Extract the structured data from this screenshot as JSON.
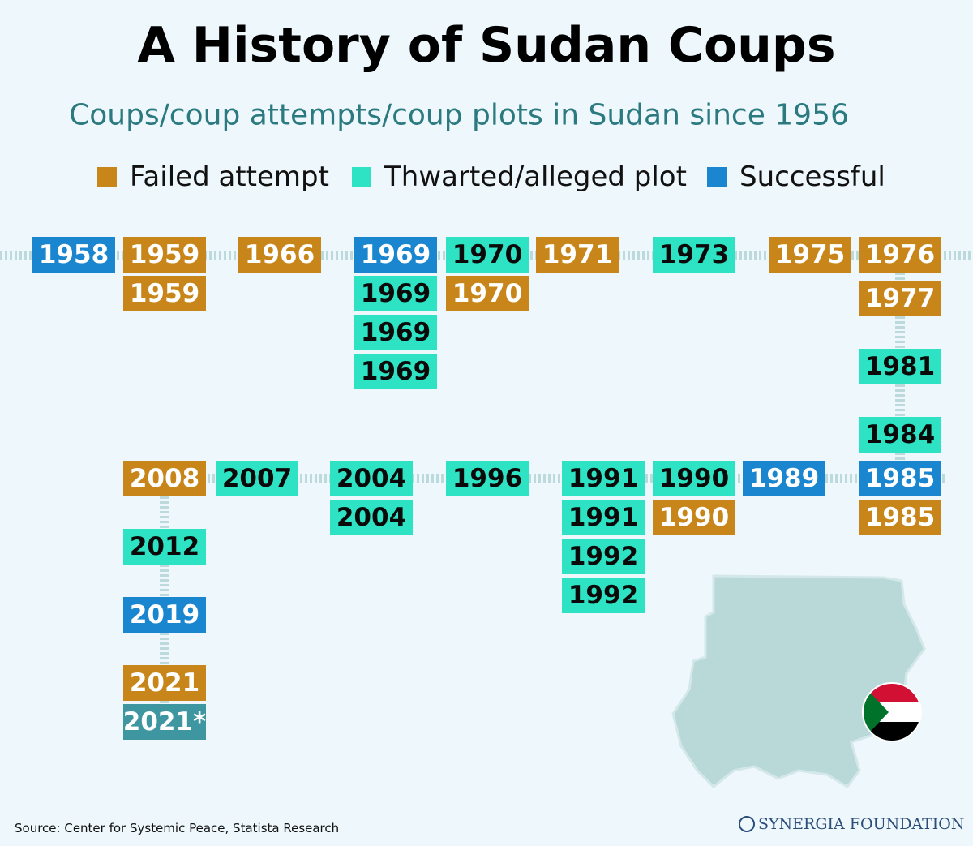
{
  "header": {
    "title": "A History of Sudan Coups",
    "subtitle": "Coups/coup attempts/coup plots in Sudan since 1956"
  },
  "legend": [
    {
      "label": "Failed attempt",
      "color": "#c8861a"
    },
    {
      "label": "Thwarted/alleged plot",
      "color": "#2de3c3"
    },
    {
      "label": "Successful",
      "color": "#1a86d0"
    }
  ],
  "boxes": [
    {
      "label": "1958",
      "kind": 2
    },
    {
      "label": "1959",
      "kind": 0
    },
    {
      "label": "1959",
      "kind": 0
    },
    {
      "label": "1966",
      "kind": 0
    },
    {
      "label": "1969",
      "kind": 2
    },
    {
      "label": "1969",
      "kind": 1
    },
    {
      "label": "1969",
      "kind": 1
    },
    {
      "label": "1969",
      "kind": 1
    },
    {
      "label": "1970",
      "kind": 1
    },
    {
      "label": "1970",
      "kind": 0
    },
    {
      "label": "1971",
      "kind": 0
    },
    {
      "label": "1973",
      "kind": 1
    },
    {
      "label": "1975",
      "kind": 0
    },
    {
      "label": "1976",
      "kind": 0
    },
    {
      "label": "1977",
      "kind": 0
    },
    {
      "label": "1981",
      "kind": 1
    },
    {
      "label": "1984",
      "kind": 1
    },
    {
      "label": "1985",
      "kind": 2
    },
    {
      "label": "1985",
      "kind": 0
    },
    {
      "label": "1989",
      "kind": 2
    },
    {
      "label": "1990",
      "kind": 1
    },
    {
      "label": "1990",
      "kind": 0
    },
    {
      "label": "1991",
      "kind": 1
    },
    {
      "label": "1991",
      "kind": 1
    },
    {
      "label": "1992",
      "kind": 1
    },
    {
      "label": "1992",
      "kind": 1
    },
    {
      "label": "1996",
      "kind": 1
    },
    {
      "label": "2004",
      "kind": 1
    },
    {
      "label": "2004",
      "kind": 1
    },
    {
      "label": "2007",
      "kind": 1
    },
    {
      "label": "2008",
      "kind": 0
    },
    {
      "label": "2012",
      "kind": 1
    },
    {
      "label": "2019",
      "kind": 2
    },
    {
      "label": "2021",
      "kind": 0
    },
    {
      "label": "2021*",
      "color": "#3d96a0"
    }
  ],
  "footer": {
    "source": "Source: Center for Systemic Peace, Statista Research",
    "logo": "SYNERGIA FOUNDATION"
  }
}
